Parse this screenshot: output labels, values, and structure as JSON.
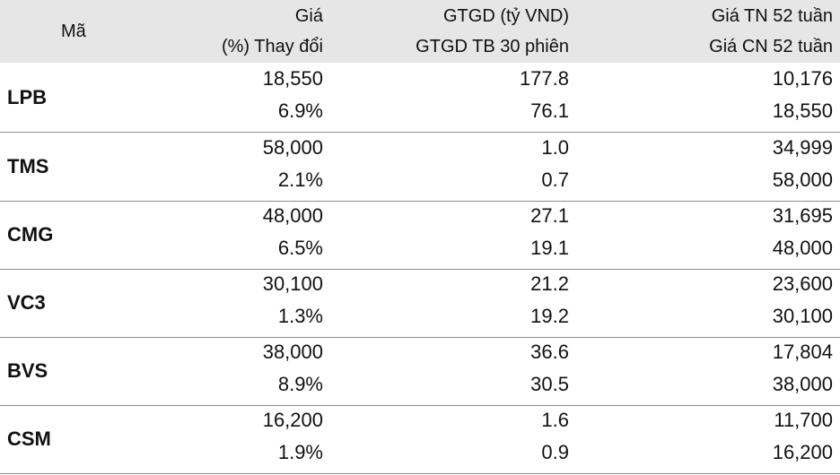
{
  "header": {
    "code": "Mã",
    "price": "Giá",
    "change": "(%) Thay đổi",
    "value": "GTGD (tỷ VND)",
    "avg_value": "GTGD TB 30 phiên",
    "low_52w": "Giá TN 52 tuần",
    "high_52w": "Giá CN 52 tuần"
  },
  "rows": [
    {
      "code": "LPB",
      "price": "18,550",
      "change": "6.9%",
      "value": "177.8",
      "avg_value": "76.1",
      "low_52w": "10,176",
      "high_52w": "18,550"
    },
    {
      "code": "TMS",
      "price": "58,000",
      "change": "2.1%",
      "value": "1.0",
      "avg_value": "0.7",
      "low_52w": "34,999",
      "high_52w": "58,000"
    },
    {
      "code": "CMG",
      "price": "48,000",
      "change": "6.5%",
      "value": "27.1",
      "avg_value": "19.1",
      "low_52w": "31,695",
      "high_52w": "48,000"
    },
    {
      "code": "VC3",
      "price": "30,100",
      "change": "1.3%",
      "value": "21.2",
      "avg_value": "19.2",
      "low_52w": "23,600",
      "high_52w": "30,100"
    },
    {
      "code": "BVS",
      "price": "38,000",
      "change": "8.9%",
      "value": "36.6",
      "avg_value": "30.5",
      "low_52w": "17,804",
      "high_52w": "38,000"
    },
    {
      "code": "CSM",
      "price": "16,200",
      "change": "1.9%",
      "value": "1.6",
      "avg_value": "0.9",
      "low_52w": "11,700",
      "high_52w": "16,200"
    }
  ]
}
